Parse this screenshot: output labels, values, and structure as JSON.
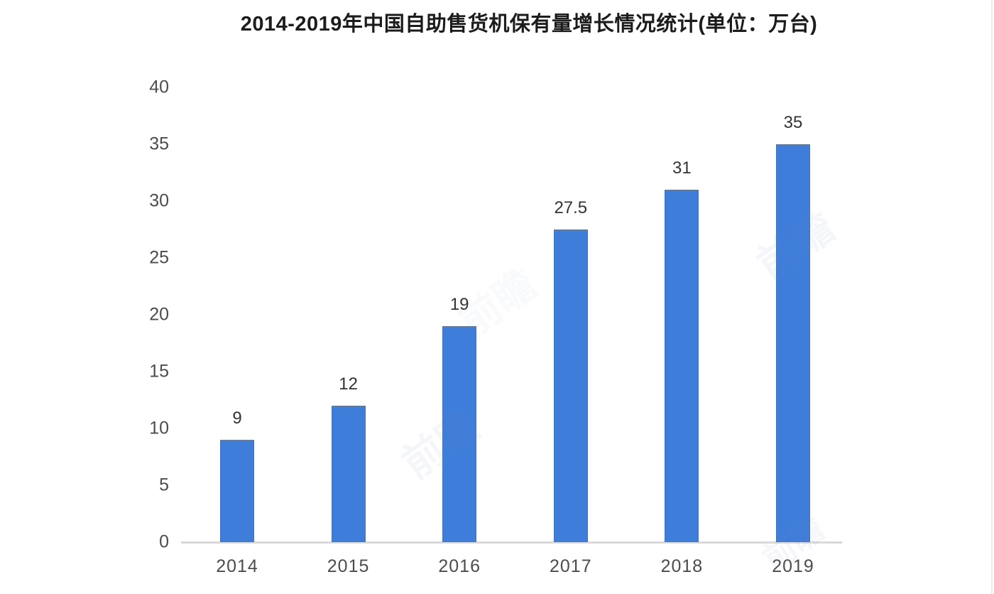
{
  "title": "2014-2019年中国自助售货机保有量增长情况统计(单位：万台)",
  "chart_data": {
    "type": "bar",
    "title": "2014-2019年中国自助售货机保有量增长情况统计(单位：万台)",
    "categories": [
      "2014",
      "2015",
      "2016",
      "2017",
      "2018",
      "2019"
    ],
    "values": [
      9,
      12,
      19,
      27.5,
      31,
      35
    ],
    "value_labels": [
      "9",
      "12",
      "19",
      "27.5",
      "31",
      "35"
    ],
    "unit": "万台",
    "xlabel": "",
    "ylabel": "",
    "ylim": [
      0,
      40
    ],
    "yticks": [
      0,
      5,
      10,
      15,
      20,
      25,
      30,
      35,
      40
    ],
    "grid": false,
    "legend": false,
    "bar_color": "#3e7dda",
    "bar_top_edge_color": "#5c7aa3",
    "axis_line_color": "#d9d9d9",
    "tick_label_color": "#4c4c4c",
    "value_label_color": "#333333",
    "title_color": "#1c1c1c",
    "background": "#ffffff"
  },
  "watermark": {
    "text": "前瞻",
    "color": "#7d93b5"
  }
}
